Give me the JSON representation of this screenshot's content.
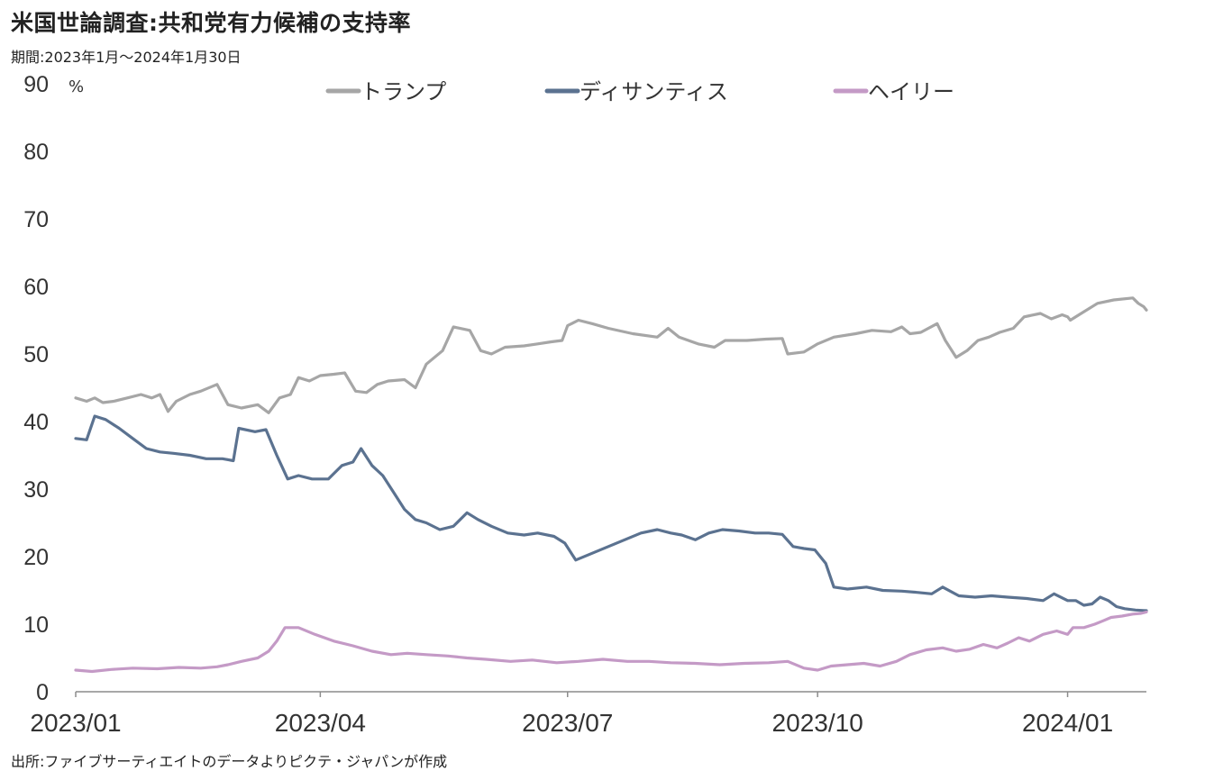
{
  "title": "米国世論調査:共和党有力候補の支持率",
  "subtitle": "期間:2023年1月～2024年1月30日",
  "source": "出所:ファイブサーティエイトのデータよりピクテ・ジャパンが作成",
  "chart_data": {
    "type": "line",
    "yunit": "%",
    "ylim": [
      0,
      90
    ],
    "yticks": [
      0,
      10,
      20,
      30,
      40,
      50,
      60,
      70,
      80,
      90
    ],
    "xlim": [
      "2023-01-01",
      "2024-01-30"
    ],
    "xticks": [
      {
        "date": "2023-01-01",
        "label": "2023/01"
      },
      {
        "date": "2023-04-01",
        "label": "2023/04"
      },
      {
        "date": "2023-07-01",
        "label": "2023/07"
      },
      {
        "date": "2023-10-01",
        "label": "2023/10"
      },
      {
        "date": "2024-01-01",
        "label": "2024/01"
      }
    ],
    "grid": false,
    "legend_position": "top",
    "series": [
      {
        "name": "トランプ",
        "color": "#a6a6a6",
        "points": [
          [
            "2023-01-01",
            43.5
          ],
          [
            "2023-01-05",
            43
          ],
          [
            "2023-01-08",
            43.5
          ],
          [
            "2023-01-11",
            42.8
          ],
          [
            "2023-01-15",
            43
          ],
          [
            "2023-01-20",
            43.5
          ],
          [
            "2023-01-25",
            44
          ],
          [
            "2023-01-29",
            43.5
          ],
          [
            "2023-02-01",
            44
          ],
          [
            "2023-02-04",
            41.5
          ],
          [
            "2023-02-07",
            43
          ],
          [
            "2023-02-12",
            44
          ],
          [
            "2023-02-16",
            44.5
          ],
          [
            "2023-02-22",
            45.5
          ],
          [
            "2023-02-26",
            42.5
          ],
          [
            "2023-03-03",
            42
          ],
          [
            "2023-03-09",
            42.5
          ],
          [
            "2023-03-13",
            41.3
          ],
          [
            "2023-03-17",
            43.5
          ],
          [
            "2023-03-21",
            44
          ],
          [
            "2023-03-24",
            46.5
          ],
          [
            "2023-03-28",
            46
          ],
          [
            "2023-04-01",
            46.8
          ],
          [
            "2023-04-06",
            47
          ],
          [
            "2023-04-10",
            47.2
          ],
          [
            "2023-04-14",
            44.5
          ],
          [
            "2023-04-18",
            44.3
          ],
          [
            "2023-04-22",
            45.5
          ],
          [
            "2023-04-26",
            46
          ],
          [
            "2023-05-02",
            46.2
          ],
          [
            "2023-05-06",
            45
          ],
          [
            "2023-05-10",
            48.5
          ],
          [
            "2023-05-16",
            50.5
          ],
          [
            "2023-05-20",
            54
          ],
          [
            "2023-05-26",
            53.5
          ],
          [
            "2023-05-30",
            50.5
          ],
          [
            "2023-06-03",
            50
          ],
          [
            "2023-06-08",
            51
          ],
          [
            "2023-06-15",
            51.2
          ],
          [
            "2023-06-20",
            51.5
          ],
          [
            "2023-06-25",
            51.8
          ],
          [
            "2023-06-29",
            52
          ],
          [
            "2023-07-01",
            54.2
          ],
          [
            "2023-07-05",
            55
          ],
          [
            "2023-07-10",
            54.5
          ],
          [
            "2023-07-16",
            53.8
          ],
          [
            "2023-07-25",
            53
          ],
          [
            "2023-08-03",
            52.5
          ],
          [
            "2023-08-07",
            53.8
          ],
          [
            "2023-08-11",
            52.5
          ],
          [
            "2023-08-18",
            51.5
          ],
          [
            "2023-08-24",
            51
          ],
          [
            "2023-08-28",
            52
          ],
          [
            "2023-09-05",
            52
          ],
          [
            "2023-09-12",
            52.2
          ],
          [
            "2023-09-18",
            52.3
          ],
          [
            "2023-09-20",
            50
          ],
          [
            "2023-09-26",
            50.3
          ],
          [
            "2023-10-01",
            51.5
          ],
          [
            "2023-10-07",
            52.5
          ],
          [
            "2023-10-15",
            53
          ],
          [
            "2023-10-21",
            53.5
          ],
          [
            "2023-10-28",
            53.3
          ],
          [
            "2023-11-01",
            54
          ],
          [
            "2023-11-04",
            53
          ],
          [
            "2023-11-08",
            53.2
          ],
          [
            "2023-11-14",
            54.5
          ],
          [
            "2023-11-17",
            52
          ],
          [
            "2023-11-21",
            49.5
          ],
          [
            "2023-11-25",
            50.5
          ],
          [
            "2023-11-29",
            52
          ],
          [
            "2023-12-03",
            52.5
          ],
          [
            "2023-12-07",
            53.2
          ],
          [
            "2023-12-12",
            53.8
          ],
          [
            "2023-12-16",
            55.5
          ],
          [
            "2023-12-22",
            56
          ],
          [
            "2023-12-26",
            55.2
          ],
          [
            "2023-12-30",
            55.8
          ],
          [
            "2024-01-01",
            55.5
          ],
          [
            "2024-01-02",
            55
          ],
          [
            "2024-01-06",
            56
          ],
          [
            "2024-01-12",
            57.5
          ],
          [
            "2024-01-18",
            58
          ],
          [
            "2024-01-25",
            58.3
          ],
          [
            "2024-01-27",
            57.5
          ],
          [
            "2024-01-29",
            57
          ],
          [
            "2024-01-30",
            56.5
          ]
        ]
      },
      {
        "name": "ディサンティス",
        "color": "#5b7290",
        "points": [
          [
            "2023-01-01",
            37.5
          ],
          [
            "2023-01-05",
            37.3
          ],
          [
            "2023-01-08",
            40.8
          ],
          [
            "2023-01-12",
            40.3
          ],
          [
            "2023-01-17",
            39
          ],
          [
            "2023-01-22",
            37.5
          ],
          [
            "2023-01-27",
            36
          ],
          [
            "2023-02-01",
            35.5
          ],
          [
            "2023-02-06",
            35.3
          ],
          [
            "2023-02-12",
            35
          ],
          [
            "2023-02-18",
            34.5
          ],
          [
            "2023-02-24",
            34.5
          ],
          [
            "2023-02-28",
            34.2
          ],
          [
            "2023-03-02",
            39
          ],
          [
            "2023-03-08",
            38.5
          ],
          [
            "2023-03-12",
            38.8
          ],
          [
            "2023-03-16",
            35
          ],
          [
            "2023-03-20",
            31.5
          ],
          [
            "2023-03-24",
            32
          ],
          [
            "2023-03-29",
            31.5
          ],
          [
            "2023-04-04",
            31.5
          ],
          [
            "2023-04-09",
            33.5
          ],
          [
            "2023-04-13",
            34
          ],
          [
            "2023-04-16",
            36
          ],
          [
            "2023-04-20",
            33.5
          ],
          [
            "2023-04-24",
            32
          ],
          [
            "2023-04-28",
            29.5
          ],
          [
            "2023-05-02",
            27
          ],
          [
            "2023-05-06",
            25.5
          ],
          [
            "2023-05-10",
            25
          ],
          [
            "2023-05-15",
            24
          ],
          [
            "2023-05-20",
            24.5
          ],
          [
            "2023-05-25",
            26.5
          ],
          [
            "2023-05-29",
            25.5
          ],
          [
            "2023-06-03",
            24.5
          ],
          [
            "2023-06-09",
            23.5
          ],
          [
            "2023-06-15",
            23.2
          ],
          [
            "2023-06-20",
            23.5
          ],
          [
            "2023-06-26",
            23
          ],
          [
            "2023-06-30",
            22
          ],
          [
            "2023-07-04",
            19.5
          ],
          [
            "2023-07-10",
            20.5
          ],
          [
            "2023-07-16",
            21.5
          ],
          [
            "2023-07-22",
            22.5
          ],
          [
            "2023-07-28",
            23.5
          ],
          [
            "2023-08-03",
            24
          ],
          [
            "2023-08-08",
            23.5
          ],
          [
            "2023-08-12",
            23.2
          ],
          [
            "2023-08-17",
            22.5
          ],
          [
            "2023-08-22",
            23.5
          ],
          [
            "2023-08-27",
            24
          ],
          [
            "2023-09-02",
            23.8
          ],
          [
            "2023-09-08",
            23.5
          ],
          [
            "2023-09-13",
            23.5
          ],
          [
            "2023-09-18",
            23.3
          ],
          [
            "2023-09-22",
            21.5
          ],
          [
            "2023-09-26",
            21.2
          ],
          [
            "2023-09-30",
            21
          ],
          [
            "2023-10-04",
            19
          ],
          [
            "2023-10-07",
            15.5
          ],
          [
            "2023-10-12",
            15.2
          ],
          [
            "2023-10-19",
            15.5
          ],
          [
            "2023-10-25",
            15
          ],
          [
            "2023-11-01",
            14.9
          ],
          [
            "2023-11-07",
            14.7
          ],
          [
            "2023-11-12",
            14.5
          ],
          [
            "2023-11-16",
            15.5
          ],
          [
            "2023-11-22",
            14.2
          ],
          [
            "2023-11-28",
            14
          ],
          [
            "2023-12-04",
            14.2
          ],
          [
            "2023-12-10",
            14
          ],
          [
            "2023-12-17",
            13.8
          ],
          [
            "2023-12-23",
            13.5
          ],
          [
            "2023-12-27",
            14.5
          ],
          [
            "2024-01-01",
            13.5
          ],
          [
            "2024-01-04",
            13.5
          ],
          [
            "2024-01-07",
            12.8
          ],
          [
            "2024-01-10",
            13
          ],
          [
            "2024-01-13",
            14
          ],
          [
            "2024-01-16",
            13.5
          ],
          [
            "2024-01-19",
            12.6
          ],
          [
            "2024-01-22",
            12.3
          ],
          [
            "2024-01-26",
            12.1
          ],
          [
            "2024-01-30",
            12.0
          ]
        ]
      },
      {
        "name": "ヘイリー",
        "color": "#c49ac6",
        "points": [
          [
            "2023-01-01",
            3.2
          ],
          [
            "2023-01-07",
            3.0
          ],
          [
            "2023-01-14",
            3.3
          ],
          [
            "2023-01-22",
            3.5
          ],
          [
            "2023-01-31",
            3.4
          ],
          [
            "2023-02-08",
            3.6
          ],
          [
            "2023-02-16",
            3.5
          ],
          [
            "2023-02-22",
            3.7
          ],
          [
            "2023-02-26",
            4.0
          ],
          [
            "2023-03-03",
            4.5
          ],
          [
            "2023-03-09",
            5.0
          ],
          [
            "2023-03-13",
            6.0
          ],
          [
            "2023-03-16",
            7.5
          ],
          [
            "2023-03-19",
            9.5
          ],
          [
            "2023-03-24",
            9.5
          ],
          [
            "2023-03-30",
            8.5
          ],
          [
            "2023-04-06",
            7.5
          ],
          [
            "2023-04-13",
            6.8
          ],
          [
            "2023-04-20",
            6.0
          ],
          [
            "2023-04-27",
            5.5
          ],
          [
            "2023-05-03",
            5.7
          ],
          [
            "2023-05-10",
            5.5
          ],
          [
            "2023-05-18",
            5.3
          ],
          [
            "2023-05-25",
            5.0
          ],
          [
            "2023-06-01",
            4.8
          ],
          [
            "2023-06-10",
            4.5
          ],
          [
            "2023-06-18",
            4.7
          ],
          [
            "2023-06-27",
            4.3
          ],
          [
            "2023-07-05",
            4.5
          ],
          [
            "2023-07-14",
            4.8
          ],
          [
            "2023-07-23",
            4.5
          ],
          [
            "2023-07-31",
            4.5
          ],
          [
            "2023-08-08",
            4.3
          ],
          [
            "2023-08-17",
            4.2
          ],
          [
            "2023-08-26",
            4.0
          ],
          [
            "2023-09-04",
            4.2
          ],
          [
            "2023-09-13",
            4.3
          ],
          [
            "2023-09-20",
            4.5
          ],
          [
            "2023-09-26",
            3.5
          ],
          [
            "2023-10-01",
            3.2
          ],
          [
            "2023-10-06",
            3.8
          ],
          [
            "2023-10-12",
            4.0
          ],
          [
            "2023-10-18",
            4.2
          ],
          [
            "2023-10-24",
            3.8
          ],
          [
            "2023-10-30",
            4.5
          ],
          [
            "2023-11-04",
            5.5
          ],
          [
            "2023-11-10",
            6.2
          ],
          [
            "2023-11-16",
            6.5
          ],
          [
            "2023-11-21",
            6.0
          ],
          [
            "2023-11-26",
            6.3
          ],
          [
            "2023-12-01",
            7.0
          ],
          [
            "2023-12-06",
            6.5
          ],
          [
            "2023-12-10",
            7.2
          ],
          [
            "2023-12-14",
            8.0
          ],
          [
            "2023-12-18",
            7.5
          ],
          [
            "2023-12-23",
            8.5
          ],
          [
            "2023-12-28",
            9.0
          ],
          [
            "2024-01-01",
            8.5
          ],
          [
            "2024-01-03",
            9.5
          ],
          [
            "2024-01-07",
            9.5
          ],
          [
            "2024-01-11",
            10
          ],
          [
            "2024-01-14",
            10.5
          ],
          [
            "2024-01-17",
            11.0
          ],
          [
            "2024-01-21",
            11.2
          ],
          [
            "2024-01-25",
            11.5
          ],
          [
            "2024-01-28",
            11.6
          ],
          [
            "2024-01-30",
            11.8
          ]
        ]
      }
    ]
  }
}
